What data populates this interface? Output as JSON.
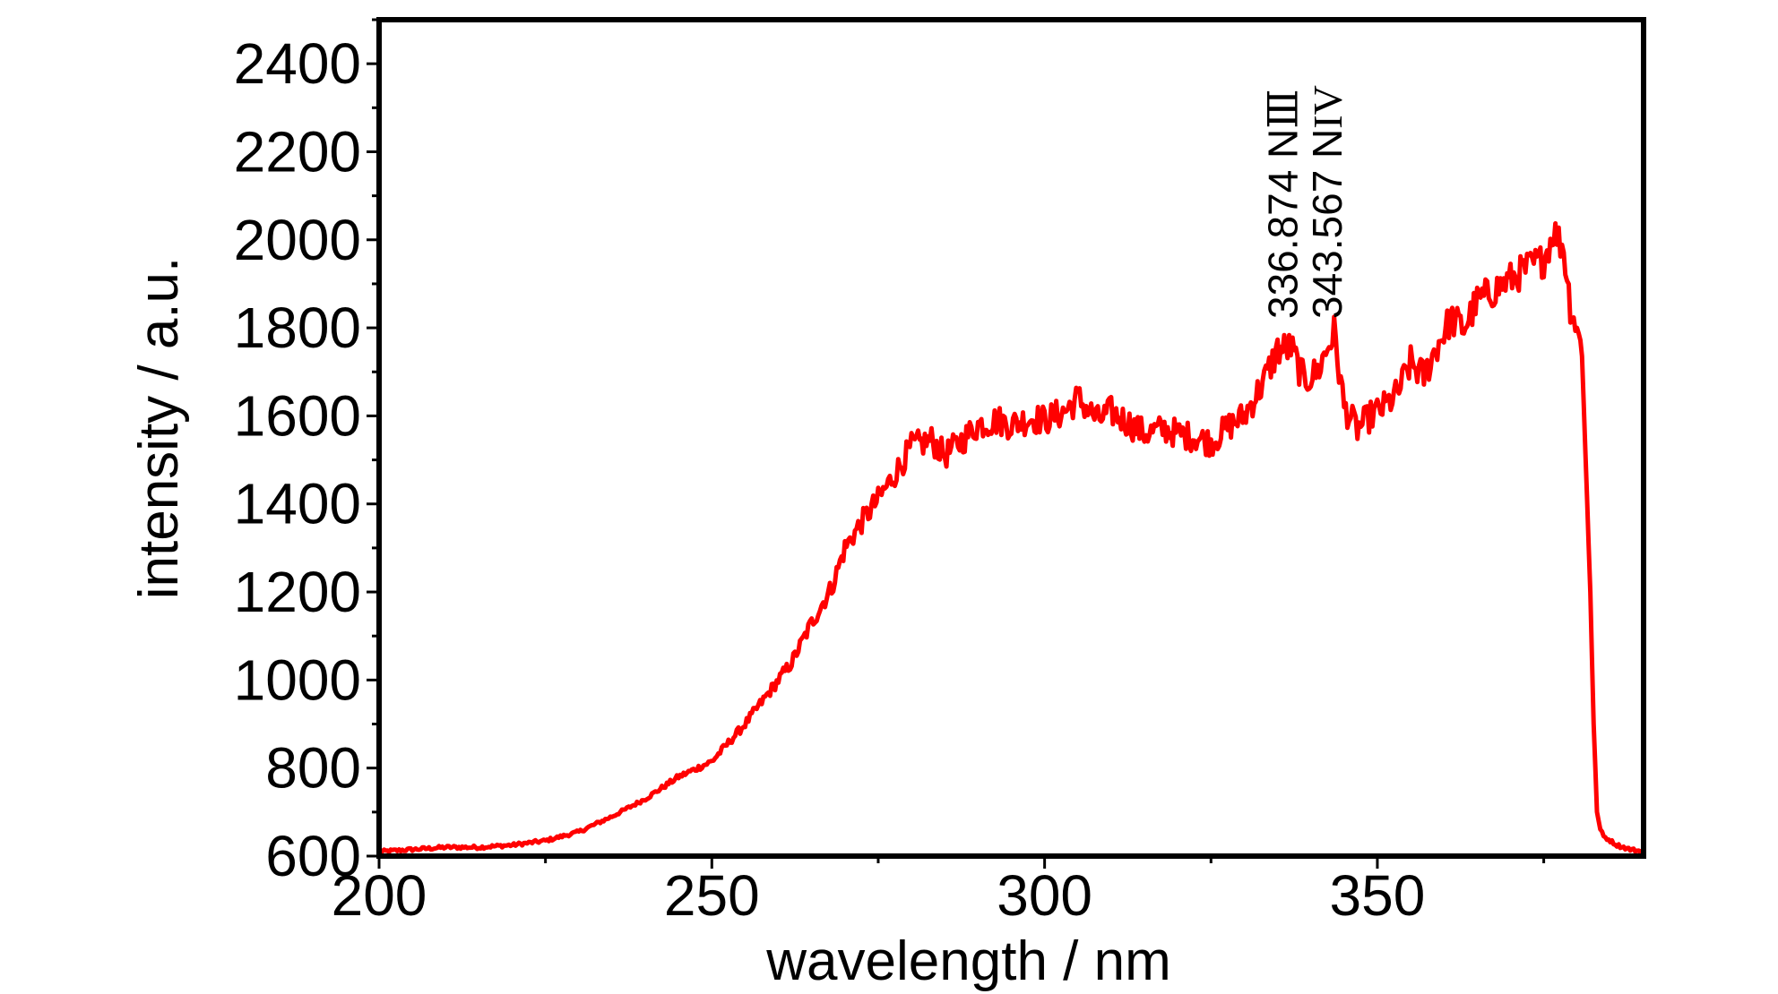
{
  "chart_data": {
    "type": "line",
    "title": "",
    "xlabel": "wavelength / nm",
    "ylabel": "intensity / a.u.",
    "xlim": [
      200,
      390
    ],
    "ylim": [
      600,
      2500
    ],
    "x_ticks": [
      200,
      250,
      300,
      350
    ],
    "x_tick_labels": [
      "200",
      "250",
      "300",
      "350"
    ],
    "y_ticks": [
      600,
      800,
      1000,
      1200,
      1400,
      1600,
      1800,
      2000,
      2200,
      2400
    ],
    "y_tick_labels": [
      "600",
      "800",
      "1000",
      "1200",
      "1400",
      "1600",
      "1800",
      "2000",
      "2200",
      "2400"
    ],
    "grid": false,
    "line_color": "#ff0000",
    "annotations": [
      {
        "wavelength": "336.874",
        "species": "N",
        "ion": "Ⅲ",
        "x": 336.874
      },
      {
        "wavelength": "343.567",
        "species": "N",
        "ion": "IV",
        "x": 343.567
      }
    ],
    "series": [
      {
        "x": [
          200,
          205,
          210,
          215,
          220,
          225,
          230,
          235,
          240,
          245,
          250,
          255,
          260,
          262,
          265,
          268,
          270,
          273,
          275,
          278,
          280,
          283,
          285,
          288,
          290,
          293,
          295,
          298,
          300,
          303,
          305,
          308,
          310,
          313,
          315,
          318,
          320,
          323,
          325,
          328,
          330,
          333,
          335,
          337,
          339,
          341,
          343.5,
          345,
          347,
          349,
          351,
          353,
          355,
          357,
          359,
          361,
          363,
          365,
          367,
          369,
          371,
          373,
          375,
          376.5,
          378,
          379,
          380,
          380.7,
          381.3,
          382,
          382.5,
          383,
          383.5,
          384,
          385,
          386,
          388,
          390
        ],
        "y": [
          610,
          615,
          620,
          620,
          625,
          635,
          655,
          690,
          730,
          780,
          815,
          900,
          1000,
          1040,
          1130,
          1210,
          1300,
          1370,
          1410,
          1480,
          1530,
          1545,
          1510,
          1550,
          1580,
          1590,
          1580,
          1595,
          1590,
          1610,
          1640,
          1590,
          1610,
          1580,
          1560,
          1570,
          1560,
          1550,
          1540,
          1580,
          1600,
          1680,
          1750,
          1755,
          1680,
          1700,
          1790,
          1620,
          1570,
          1600,
          1620,
          1650,
          1720,
          1690,
          1760,
          1820,
          1800,
          1860,
          1880,
          1900,
          1920,
          1940,
          1955,
          2020,
          1980,
          1850,
          1800,
          1760,
          1500,
          1200,
          900,
          700,
          660,
          645,
          635,
          625,
          615,
          610
        ]
      }
    ]
  }
}
